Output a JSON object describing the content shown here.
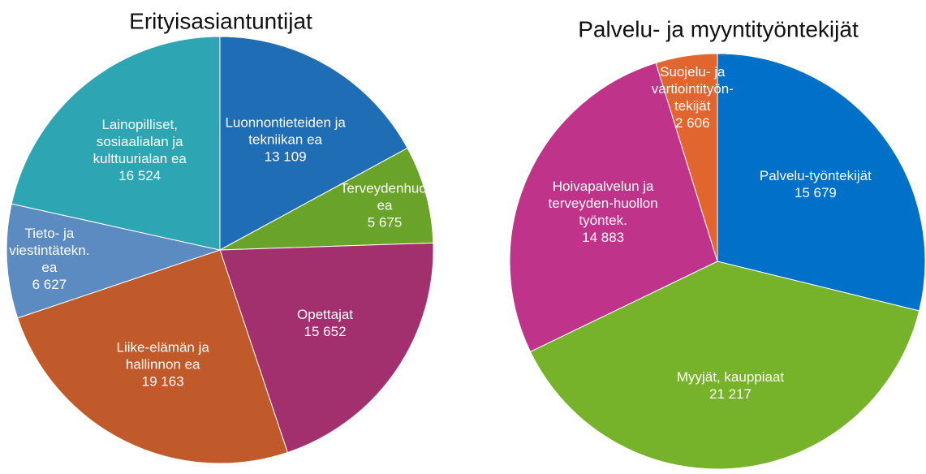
{
  "chart_data": [
    {
      "type": "pie",
      "title": "Erityisasiantuntijat",
      "categories": [
        "Luonnontieteiden ja tekniikan ea",
        "Terveydenhuollon ea",
        "Opettajat",
        "Liike-elämän ja hallinnon ea",
        "Tieto- ja viestintätekn. ea",
        "Lainopilliset, sosiaalialan ja kulttuurialan ea"
      ],
      "values": [
        13109,
        5675,
        15652,
        19163,
        6627,
        16524
      ],
      "value_labels": [
        "13 109",
        "5 675",
        "15 652",
        "19 163",
        "6 627",
        "16 524"
      ],
      "colors": [
        "#1f6db5",
        "#6aa329",
        "#a2306f",
        "#c05a2a",
        "#5b8bc0",
        "#2ea5b2"
      ]
    },
    {
      "type": "pie",
      "title": "Palvelu- ja myyntityöntekijät",
      "categories": [
        "Palvelu-työntekijät",
        "Myyjät, kauppiaat",
        "Hoivapalvelun ja terveyden-huollon työntek.",
        "Suojelu- ja vartiointityön-tekijät"
      ],
      "values": [
        15679,
        21217,
        14883,
        2606
      ],
      "value_labels": [
        "15 679",
        "21 217",
        "14 883",
        "2 606"
      ],
      "colors": [
        "#0070c8",
        "#76b32a",
        "#c0338a",
        "#e0652f"
      ]
    }
  ]
}
